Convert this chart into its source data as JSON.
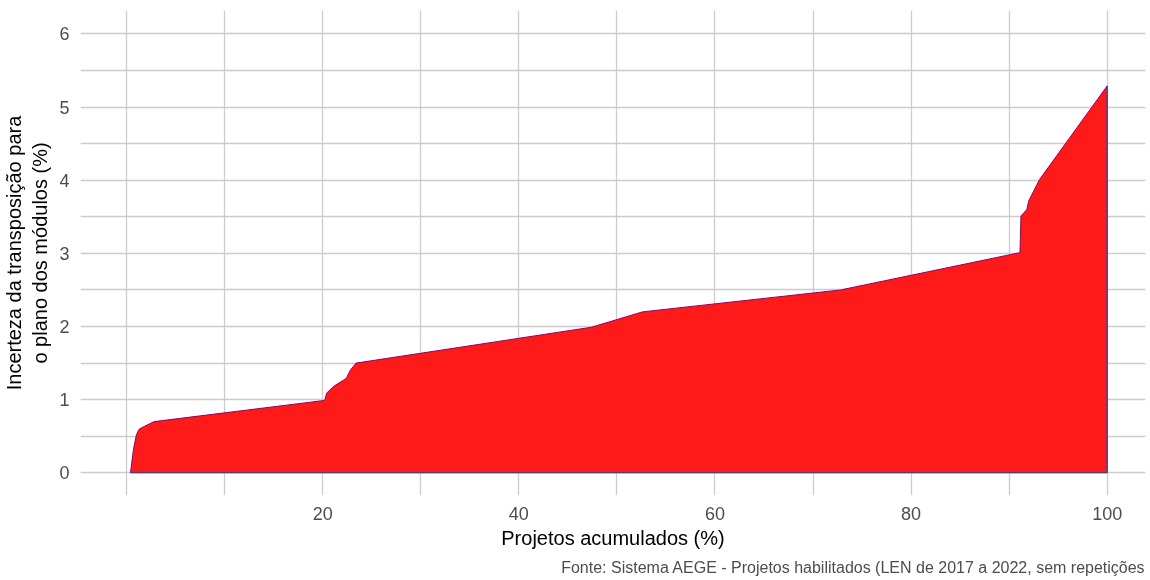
{
  "chart_data": {
    "type": "area",
    "xlabel": "Projetos acumulados (%)",
    "ylabel": "Incerteza da transposição para\no plano dos módulos (%)",
    "annotations": [
      "Fonte: Sistema AEGE - Projetos habilitados (LEN de 2017 a 2022, sem repetições"
    ],
    "x": [
      0.4,
      0.7,
      1.0,
      1.3,
      2.8,
      20.2,
      20.4,
      21.2,
      22.4,
      22.8,
      23.4,
      47.4,
      52.6,
      72.8,
      91.1,
      91.2,
      91.8,
      92.0,
      93.1,
      100
    ],
    "series": [
      {
        "color": "#ff1a1a",
        "values": [
          0,
          0.32,
          0.52,
          0.6,
          0.7,
          0.99,
          1.09,
          1.19,
          1.29,
          1.4,
          1.5,
          1.99,
          2.2,
          2.5,
          3.01,
          3.51,
          3.6,
          3.72,
          4.01,
          5.29
        ]
      }
    ],
    "xlim": [
      -4.7,
      103.9
    ],
    "ylim": [
      -0.31,
      6.32
    ],
    "xticks": [
      {
        "value": 0,
        "label": null
      },
      {
        "value": 10,
        "label": null
      },
      20,
      {
        "value": 30,
        "label": null
      },
      40,
      {
        "value": 50,
        "label": null
      },
      60,
      {
        "value": 70,
        "label": null
      },
      80,
      {
        "value": 90,
        "label": null
      },
      100
    ],
    "yticks": [
      0,
      {
        "value": 0.5,
        "label": null
      },
      1,
      {
        "value": 1.5,
        "label": null
      },
      2,
      {
        "value": 2.5,
        "label": null
      },
      3,
      {
        "value": 3.5,
        "label": null
      },
      4,
      {
        "value": 4.5,
        "label": null
      },
      5,
      {
        "value": 5.5,
        "label": null
      },
      6
    ],
    "grid": true
  }
}
